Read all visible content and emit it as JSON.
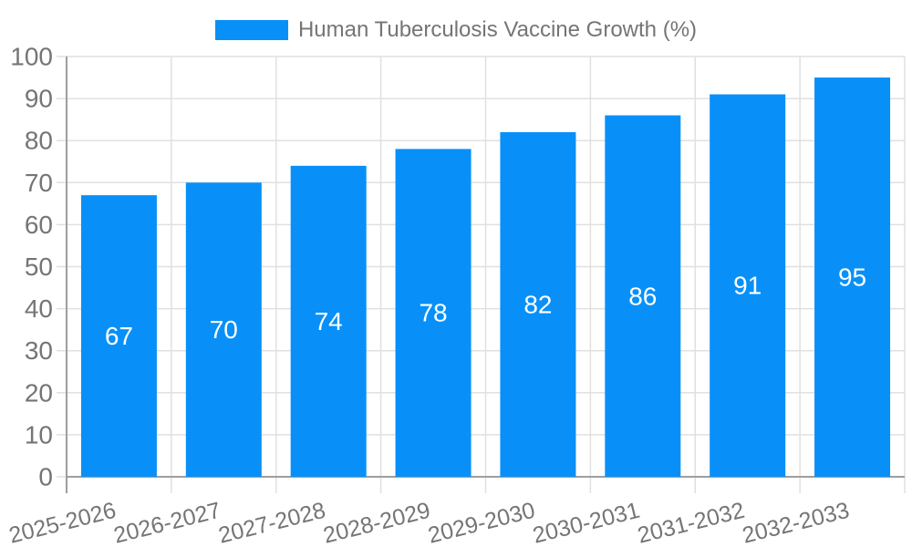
{
  "chart_data": {
    "type": "bar",
    "title": "Human Tuberculosis Vaccine Growth (%)",
    "categories": [
      "2025-2026",
      "2026-2027",
      "2027-2028",
      "2028-2029",
      "2029-2030",
      "2030-2031",
      "2031-2032",
      "2032-2033"
    ],
    "values": [
      67,
      70,
      74,
      78,
      82,
      86,
      91,
      95
    ],
    "series": [
      {
        "name": "Human Tuberculosis Vaccine Growth (%)",
        "values": [
          67,
          70,
          74,
          78,
          82,
          86,
          91,
          95
        ]
      }
    ],
    "xlabel": "",
    "ylabel": "",
    "ylim": [
      0,
      100
    ],
    "ytick_step": 10,
    "yticks": [
      0,
      10,
      20,
      30,
      40,
      50,
      60,
      70,
      80,
      90,
      100
    ],
    "grid": true,
    "legend_position": "top",
    "value_labels_shown": true,
    "value_label_position": "inside-center",
    "bar_color": "#0890f8",
    "value_label_color": "#ffffff",
    "colors": {
      "grid": "#e0e0e0",
      "axis": "#9e9e9e",
      "text": "#757575",
      "background": "#ffffff"
    }
  }
}
